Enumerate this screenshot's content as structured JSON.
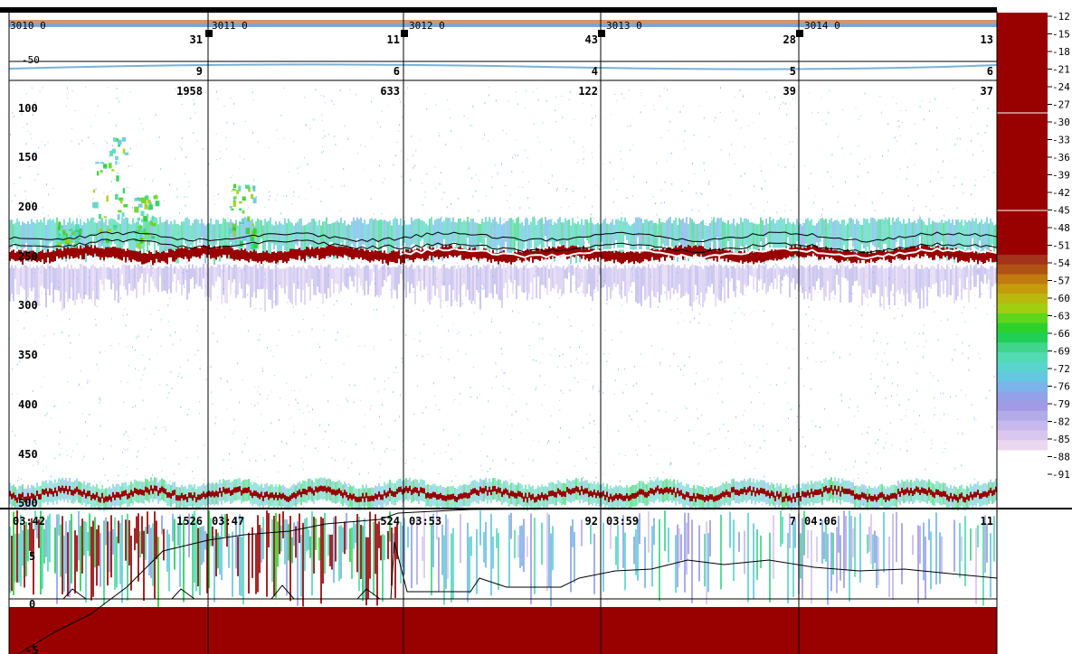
{
  "app": {
    "interval_labels": [
      "3010 0",
      "3011 0",
      "3012 0",
      "3013 0",
      "3014 0"
    ],
    "interval_counts_top": [
      "31",
      "11",
      "43",
      "28",
      "13"
    ],
    "interval_counts_surface": [
      "9",
      "6",
      "4",
      "5",
      "6"
    ],
    "interval_counts_main": [
      "1958",
      "633",
      "122",
      "39",
      "37"
    ],
    "time_labels": [
      "03:42",
      "03:47",
      "03:53",
      "03:59",
      "04:06"
    ],
    "interval_counts_bottom": [
      "1526",
      "524",
      "92",
      "7",
      "11"
    ]
  },
  "depth_axis": {
    "surface_tick": "-50",
    "main_ticks": [
      "100",
      "150",
      "200",
      "250",
      "300",
      "350",
      "400",
      "450",
      "500"
    ]
  },
  "bottom_axis": {
    "ticks": [
      "5",
      "0",
      "-5"
    ]
  },
  "colors": {
    "background": "#ffffff",
    "gridline": "#000000",
    "strong_echo": "#990000",
    "palette": [
      "#990000",
      "#a3331a",
      "#b05214",
      "#c07a10",
      "#c59b0c",
      "#b7ba0c",
      "#a0cf12",
      "#5fd61c",
      "#2cd12a",
      "#1fd057",
      "#3fd58a",
      "#52dbb2",
      "#5ad5cd",
      "#64c8e0",
      "#7ab4ea",
      "#92a2e8",
      "#a29ae4",
      "#b3aae8",
      "#c6b7ec",
      "#d9c6ee",
      "#ead8f0"
    ]
  },
  "colorbar": {
    "labels": [
      "-12",
      "-15",
      "-18",
      "-21",
      "-24",
      "-27",
      "-30",
      "-33",
      "-36",
      "-39",
      "-42",
      "-45",
      "-48",
      "-51",
      "-54",
      "-57",
      "-60",
      "-63",
      "-66",
      "-69",
      "-72",
      "-76",
      "-79",
      "-82",
      "-85",
      "-88",
      "-91"
    ]
  }
}
